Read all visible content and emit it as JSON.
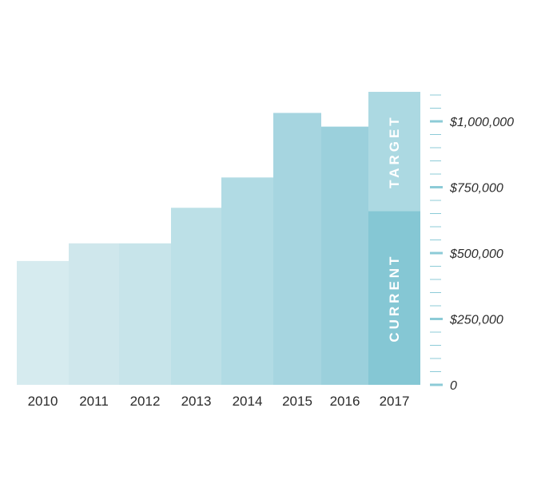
{
  "chart_data": {
    "type": "bar",
    "categories": [
      "2010",
      "2011",
      "2012",
      "2013",
      "2014",
      "2015",
      "2016",
      "2017"
    ],
    "values": [
      470000,
      537000,
      537000,
      672000,
      787000,
      1032000,
      980000,
      660000
    ],
    "target": {
      "category": "2017",
      "value": 1112000,
      "label": "TARGET"
    },
    "current_label": "CURRENT",
    "ylim": [
      0,
      1112000
    ],
    "y_ticks": [
      0,
      250000,
      500000,
      750000,
      1000000
    ],
    "y_tick_labels": [
      "0",
      "$250,000",
      "$500,000",
      "$750,000",
      "$1,000,000"
    ],
    "axis_position": "right",
    "grid": false,
    "colors": {
      "bars": [
        "#d6ebef",
        "#cfe7ec",
        "#c7e4ea",
        "#bce0e7",
        "#b1dbe4",
        "#a6d5e0",
        "#9bd0dc",
        "#85c7d4"
      ],
      "target": "#acd9e2",
      "axis": "#8ccbd7"
    }
  }
}
